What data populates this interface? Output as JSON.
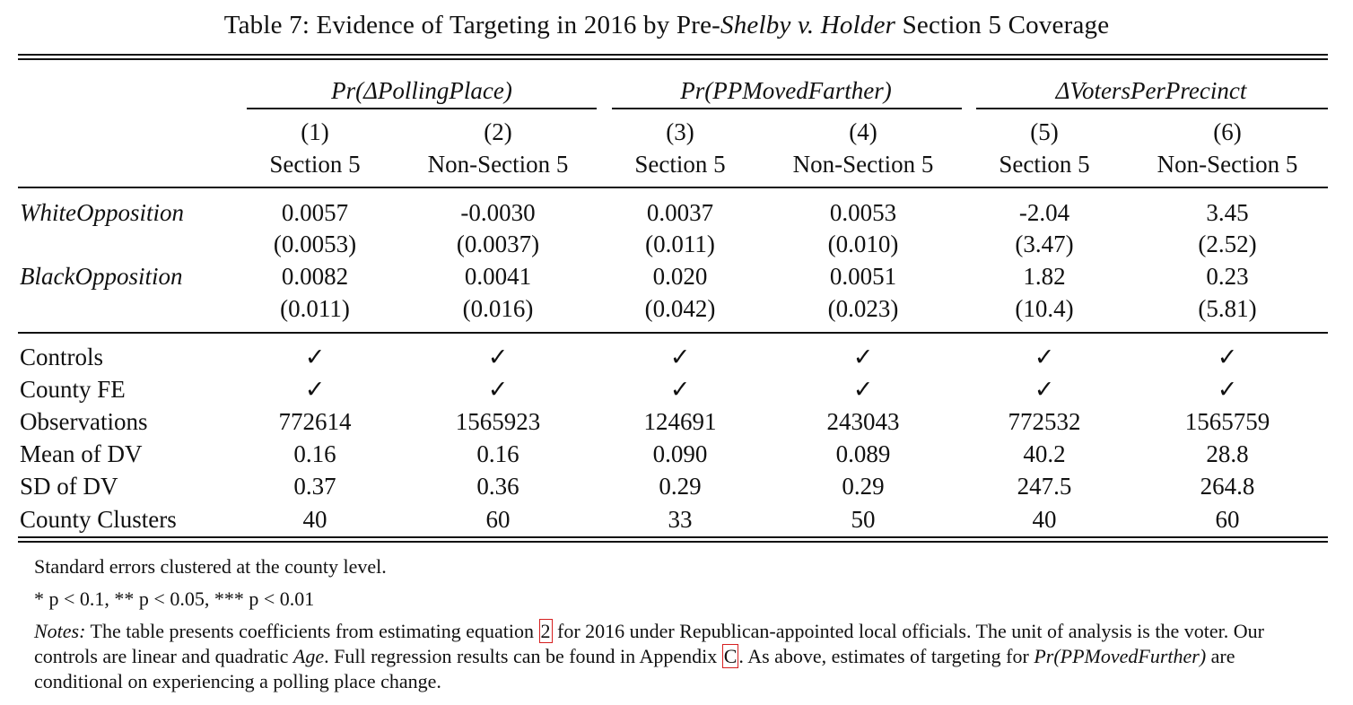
{
  "caption": {
    "prefix": "Table 7: Evidence of Targeting in 2016 by Pre-",
    "italic": "Shelby v. Holder",
    "suffix": " Section 5 Coverage"
  },
  "groups": [
    "Pr(ΔPollingPlace)",
    "Pr(PPMovedFarther)",
    "ΔVotersPerPrecinct"
  ],
  "columns": [
    {
      "num": "(1)",
      "label": "Section 5"
    },
    {
      "num": "(2)",
      "label": "Non-Section 5"
    },
    {
      "num": "(3)",
      "label": "Section 5"
    },
    {
      "num": "(4)",
      "label": "Non-Section 5"
    },
    {
      "num": "(5)",
      "label": "Section 5"
    },
    {
      "num": "(6)",
      "label": "Non-Section 5"
    }
  ],
  "coef_rows": [
    {
      "label": "WhiteOpposition",
      "coefs": [
        "0.0057",
        "-0.0030",
        "0.0037",
        "0.0053",
        "-2.04",
        "3.45"
      ],
      "ses": [
        "(0.0053)",
        "(0.0037)",
        "(0.011)",
        "(0.010)",
        "(3.47)",
        "(2.52)"
      ]
    },
    {
      "label": "BlackOpposition",
      "coefs": [
        "0.0082",
        "0.0041",
        "0.020",
        "0.0051",
        "1.82",
        "0.23"
      ],
      "ses": [
        "(0.011)",
        "(0.016)",
        "(0.042)",
        "(0.023)",
        "(10.4)",
        "(5.81)"
      ]
    }
  ],
  "stat_rows": [
    {
      "label": "Controls",
      "values": [
        "✓",
        "✓",
        "✓",
        "✓",
        "✓",
        "✓"
      ]
    },
    {
      "label": "County FE",
      "values": [
        "✓",
        "✓",
        "✓",
        "✓",
        "✓",
        "✓"
      ]
    },
    {
      "label": "Observations",
      "values": [
        "772614",
        "1565923",
        "124691",
        "243043",
        "772532",
        "1565759"
      ]
    },
    {
      "label": "Mean of DV",
      "values": [
        "0.16",
        "0.16",
        "0.090",
        "0.089",
        "40.2",
        "28.8"
      ]
    },
    {
      "label": "SD of DV",
      "values": [
        "0.37",
        "0.36",
        "0.29",
        "0.29",
        "247.5",
        "264.8"
      ]
    },
    {
      "label": "County Clusters",
      "values": [
        "40",
        "60",
        "33",
        "50",
        "40",
        "60"
      ]
    }
  ],
  "notes": {
    "se_note": "Standard errors clustered at the county level.",
    "sig_note": "* p < 0.1, ** p < 0.05, *** p < 0.01",
    "notes_label": "Notes:",
    "notes_a": " The table presents coefficients from estimating equation ",
    "eq_ref": "2",
    "notes_b": " for 2016 under Republican-appointed local officials. The unit of analysis is the voter. Our controls are linear and quadratic ",
    "age": "Age",
    "notes_c": ". Full regression results can be found in Appendix ",
    "app_ref": "C",
    "notes_d": ". As above, estimates of targeting for ",
    "pp_var": "Pr(PPMovedFurther)",
    "notes_e": " are conditional on experiencing a polling place change."
  }
}
